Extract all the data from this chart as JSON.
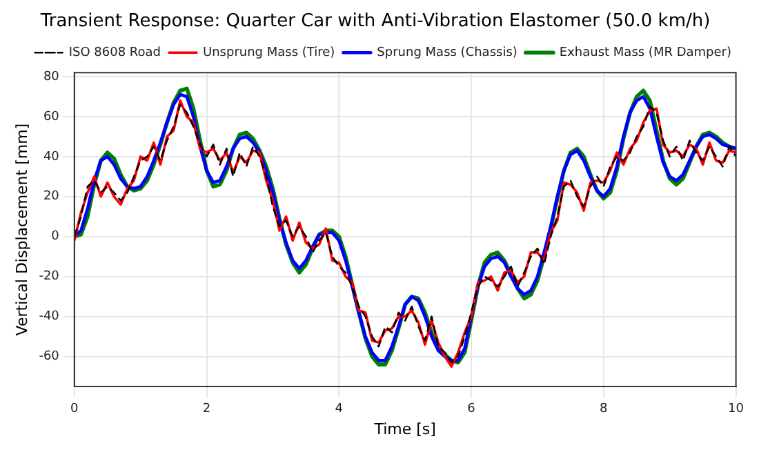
{
  "chart_data": {
    "type": "line",
    "title": "Transient Response: Quarter Car with Anti-Vibration Elastomer (50.0 km/h)",
    "xlabel": "Time [s]",
    "ylabel": "Vertical Displacement [mm]",
    "xlim": [
      0,
      10
    ],
    "xticks": [
      0,
      2,
      4,
      6,
      8,
      10
    ],
    "ylim": [
      -75,
      82
    ],
    "yticks": [
      -60,
      -40,
      -20,
      0,
      20,
      40,
      60,
      80
    ],
    "grid": true,
    "legend": "top",
    "marker": "none",
    "x": [
      0,
      0.1,
      0.2,
      0.3,
      0.4,
      0.5,
      0.6,
      0.7,
      0.8,
      0.9,
      1.0,
      1.1,
      1.2,
      1.3,
      1.4,
      1.5,
      1.6,
      1.7,
      1.8,
      1.9,
      2.0,
      2.1,
      2.2,
      2.3,
      2.4,
      2.5,
      2.6,
      2.7,
      2.8,
      2.9,
      3.0,
      3.1,
      3.2,
      3.3,
      3.4,
      3.5,
      3.6,
      3.7,
      3.8,
      3.9,
      4.0,
      4.1,
      4.2,
      4.3,
      4.4,
      4.5,
      4.6,
      4.7,
      4.8,
      4.9,
      5.0,
      5.1,
      5.2,
      5.3,
      5.4,
      5.5,
      5.6,
      5.7,
      5.8,
      5.9,
      6.0,
      6.1,
      6.2,
      6.3,
      6.4,
      6.5,
      6.6,
      6.7,
      6.8,
      6.9,
      7.0,
      7.1,
      7.2,
      7.3,
      7.4,
      7.5,
      7.6,
      7.7,
      7.8,
      7.9,
      8.0,
      8.1,
      8.2,
      8.3,
      8.4,
      8.5,
      8.6,
      8.7,
      8.8,
      8.9,
      9.0,
      9.1,
      9.2,
      9.3,
      9.4,
      9.5,
      9.6,
      9.7,
      9.8,
      9.9,
      10.0
    ],
    "series": [
      {
        "name": "ISO 8608 Road",
        "color": "#000000",
        "line_style": "dashed",
        "values": [
          0,
          10,
          25,
          28,
          22,
          25,
          22,
          18,
          22,
          30,
          38,
          40,
          45,
          38,
          48,
          55,
          66,
          62,
          55,
          46,
          40,
          46,
          36,
          44,
          30,
          42,
          35,
          45,
          40,
          30,
          15,
          5,
          8,
          0,
          5,
          0,
          -8,
          -2,
          2,
          -10,
          -15,
          -18,
          -25,
          -35,
          -40,
          -50,
          -55,
          -45,
          -48,
          -38,
          -42,
          -35,
          -45,
          -52,
          -40,
          -55,
          -58,
          -63,
          -60,
          -50,
          -38,
          -25,
          -20,
          -22,
          -25,
          -20,
          -15,
          -25,
          -18,
          -10,
          -6,
          -14,
          0,
          10,
          25,
          28,
          20,
          15,
          25,
          30,
          25,
          35,
          40,
          38,
          42,
          50,
          55,
          65,
          62,
          48,
          40,
          45,
          38,
          48,
          42,
          38,
          45,
          40,
          35,
          45,
          40
        ]
      },
      {
        "name": "Unsprung Mass (Tire)",
        "color": "#ff0000",
        "line_style": "solid",
        "values": [
          -2,
          12,
          22,
          30,
          20,
          27,
          20,
          16,
          24,
          28,
          40,
          38,
          47,
          36,
          50,
          53,
          68,
          60,
          57,
          44,
          42,
          44,
          38,
          42,
          32,
          40,
          37,
          43,
          42,
          28,
          18,
          3,
          10,
          -2,
          7,
          -3,
          -6,
          -4,
          4,
          -12,
          -13,
          -20,
          -23,
          -37,
          -38,
          -52,
          -53,
          -47,
          -46,
          -40,
          -40,
          -37,
          -43,
          -54,
          -42,
          -53,
          -60,
          -65,
          -58,
          -48,
          -40,
          -23,
          -22,
          -20,
          -27,
          -18,
          -17,
          -23,
          -20,
          -8,
          -8,
          -12,
          2,
          8,
          27,
          26,
          22,
          13,
          27,
          28,
          27,
          33,
          42,
          36,
          44,
          48,
          57,
          63,
          64,
          46,
          42,
          43,
          40,
          46,
          44,
          36,
          47,
          38,
          37,
          43,
          42
        ]
      },
      {
        "name": "Sprung Mass (Chassis)",
        "color": "#0000ff",
        "line_style": "solid",
        "values": [
          0,
          3,
          14,
          28,
          38,
          40,
          36,
          29,
          25,
          24,
          25,
          30,
          38,
          47,
          57,
          66,
          71,
          70,
          60,
          45,
          33,
          27,
          28,
          35,
          44,
          49,
          50,
          47,
          42,
          33,
          22,
          8,
          -3,
          -12,
          -16,
          -12,
          -5,
          1,
          2,
          2,
          -2,
          -12,
          -25,
          -38,
          -50,
          -58,
          -62,
          -62,
          -55,
          -45,
          -34,
          -30,
          -32,
          -40,
          -50,
          -57,
          -60,
          -62,
          -62,
          -56,
          -40,
          -25,
          -15,
          -11,
          -10,
          -13,
          -20,
          -26,
          -29,
          -27,
          -20,
          -8,
          5,
          20,
          33,
          41,
          43,
          38,
          30,
          23,
          20,
          24,
          35,
          50,
          62,
          68,
          70,
          64,
          50,
          37,
          30,
          28,
          31,
          38,
          45,
          50,
          51,
          49,
          46,
          45,
          44
        ]
      },
      {
        "name": "Exhaust Mass (MR Damper)",
        "color": "#008000",
        "line_style": "solid",
        "values": [
          0,
          1,
          10,
          26,
          38,
          42,
          39,
          31,
          25,
          23,
          24,
          28,
          36,
          46,
          57,
          67,
          73,
          74,
          64,
          48,
          33,
          25,
          26,
          33,
          44,
          51,
          52,
          49,
          43,
          35,
          24,
          9,
          -4,
          -13,
          -18,
          -14,
          -6,
          1,
          3,
          3,
          0,
          -10,
          -24,
          -38,
          -51,
          -60,
          -64,
          -64,
          -57,
          -46,
          -34,
          -30,
          -31,
          -38,
          -48,
          -55,
          -59,
          -62,
          -63,
          -58,
          -42,
          -25,
          -13,
          -9,
          -8,
          -12,
          -19,
          -26,
          -31,
          -29,
          -22,
          -10,
          4,
          19,
          33,
          42,
          44,
          40,
          31,
          23,
          19,
          22,
          33,
          49,
          62,
          70,
          73,
          68,
          53,
          38,
          29,
          26,
          29,
          37,
          45,
          51,
          52,
          50,
          47,
          45,
          44
        ]
      }
    ]
  }
}
